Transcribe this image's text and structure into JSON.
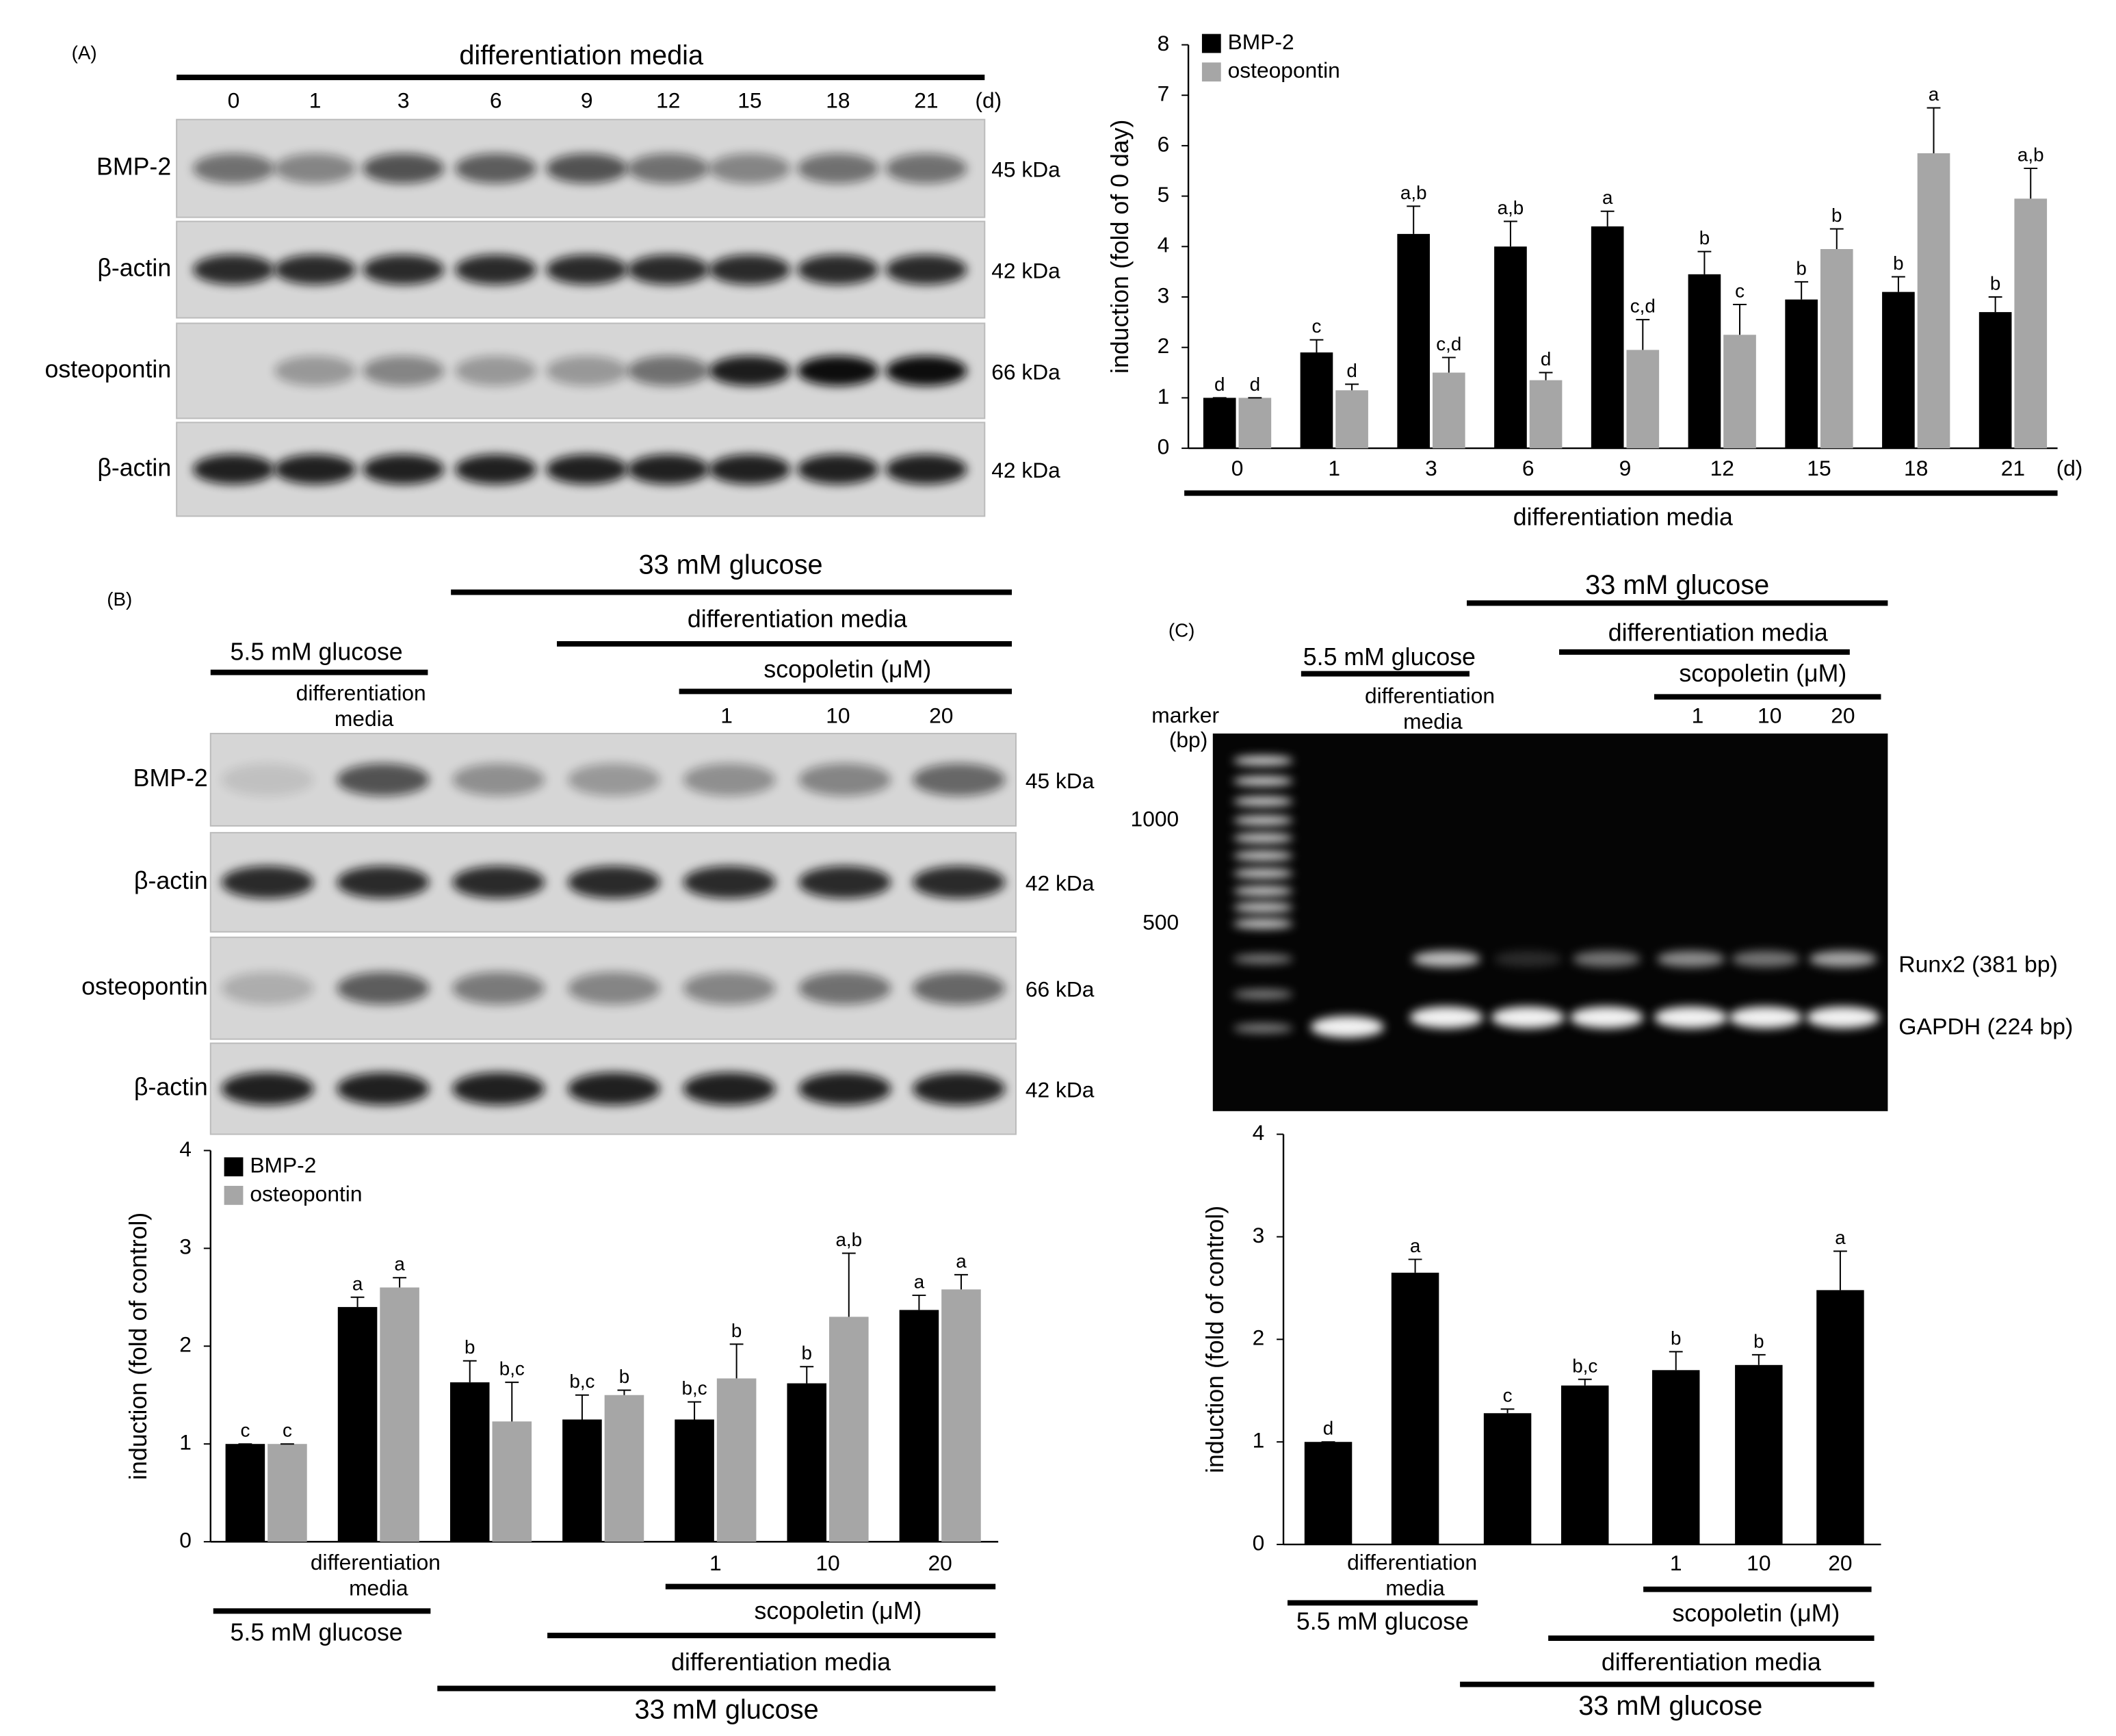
{
  "panels": [
    "(A)",
    "(B)",
    "(C)"
  ],
  "blot_A": {
    "header": "differentiation media",
    "lanes": [
      "0",
      "1",
      "3",
      "6",
      "9",
      "12",
      "15",
      "18",
      "21"
    ],
    "lane_unit": "(d)",
    "rows": [
      {
        "label": "BMP-2",
        "size": "45 kDa"
      },
      {
        "label": "β-actin",
        "size": "42 kDa"
      },
      {
        "label": "osteopontin",
        "size": "66 kDa"
      },
      {
        "label": "β-actin",
        "size": "42 kDa"
      }
    ]
  },
  "blot_B": {
    "groups": {
      "high_glucose": "33 mM glucose",
      "media": "differentiation media",
      "low_glucose": "5.5 mM glucose",
      "scopoletin": "scopoletin (μM)"
    },
    "lanes": [
      null,
      "differentiation media",
      null,
      null,
      "1",
      "10",
      "20"
    ],
    "rows": [
      {
        "label": "BMP-2",
        "size": "45 kDa"
      },
      {
        "label": "β-actin",
        "size": "42 kDa"
      },
      {
        "label": "osteopontin",
        "size": "66 kDa"
      },
      {
        "label": "β-actin",
        "size": "42 kDa"
      }
    ]
  },
  "gel_C": {
    "groups": {
      "high_glucose": "33 mM glucose",
      "media": "differentiation media",
      "low_glucose": "5.5 mM glucose",
      "scopoletin": "scopoletin (μM)"
    },
    "lanes": [
      null,
      "differentiation media",
      null,
      null,
      "1",
      "10",
      "20"
    ],
    "marker": "marker (bp)",
    "marker_sizes": [
      1000,
      500
    ],
    "bands": [
      "Runx2 (381 bp)",
      "GAPDH (224 bp)"
    ]
  },
  "chart_data": [
    {
      "type": "bar",
      "ylabel": "induction (fold of 0 day)",
      "categories": [
        "0",
        "1",
        "3",
        "6",
        "9",
        "12",
        "15",
        "18",
        "21"
      ],
      "x_unit": "(d)",
      "xgroup": "differentiation media",
      "ylim": [
        0,
        8
      ],
      "yticks": [
        0,
        1,
        2,
        3,
        4,
        5,
        6,
        7,
        8
      ],
      "legend": "upper left",
      "series": [
        {
          "name": "BMP-2",
          "color": "#000000",
          "values": [
            1,
            1.9,
            4.25,
            4.0,
            4.4,
            3.45,
            2.95,
            3.1,
            2.7
          ],
          "errors": [
            0,
            0.25,
            0.55,
            0.5,
            0.3,
            0.45,
            0.35,
            0.3,
            0.3
          ],
          "letters": [
            "d",
            "c",
            "a,b",
            "a,b",
            "a",
            "b",
            "b",
            "b",
            "b"
          ]
        },
        {
          "name": "osteopontin",
          "color": "#a6a6a6",
          "values": [
            1,
            1.15,
            1.5,
            1.35,
            1.95,
            2.25,
            3.95,
            5.85,
            4.95
          ],
          "errors": [
            0,
            0.12,
            0.3,
            0.15,
            0.6,
            0.6,
            0.4,
            0.9,
            0.6
          ],
          "letters": [
            "d",
            "d",
            "c,d",
            "d",
            "c,d",
            "c",
            "b",
            "a",
            "a,b"
          ]
        }
      ]
    },
    {
      "type": "bar",
      "ylabel": "induction (fold of control)",
      "categories": [
        null,
        "differentiation media",
        null,
        null,
        "1",
        "10",
        "20"
      ],
      "groups": {
        "low_glucose": "5.5 mM glucose",
        "scopoletin": "scopoletin (μM)",
        "media": "differentiation media",
        "high_glucose": "33 mM glucose"
      },
      "ylim": [
        0,
        4
      ],
      "yticks": [
        0,
        1,
        2,
        3,
        4
      ],
      "legend": "upper left",
      "series": [
        {
          "name": "BMP-2",
          "color": "#000000",
          "values": [
            1,
            2.4,
            1.63,
            1.25,
            1.25,
            1.62,
            2.37
          ],
          "errors": [
            0,
            0.1,
            0.22,
            0.25,
            0.18,
            0.17,
            0.15
          ],
          "letters": [
            "c",
            "a",
            "b",
            "b,c",
            "b,c",
            "b",
            "a"
          ]
        },
        {
          "name": "osteopontin",
          "color": "#a6a6a6",
          "values": [
            1,
            2.6,
            1.23,
            1.5,
            1.67,
            2.3,
            2.58
          ],
          "errors": [
            0,
            0.1,
            0.4,
            0.05,
            0.35,
            0.65,
            0.15
          ],
          "letters": [
            "c",
            "a",
            "b,c",
            "b",
            "b",
            "a,b",
            "a"
          ]
        }
      ]
    },
    {
      "type": "bar",
      "ylabel": "induction (fold of control)",
      "categories": [
        null,
        "differentiation media",
        null,
        null,
        "1",
        "10",
        "20"
      ],
      "groups": {
        "low_glucose": "5.5 mM glucose",
        "scopoletin": "scopoletin (μM)",
        "media": "differentiation media",
        "high_glucose": "33 mM glucose"
      },
      "ylim": [
        0,
        4
      ],
      "yticks": [
        0,
        1,
        2,
        3,
        4
      ],
      "color": "#000000",
      "values": [
        1,
        2.65,
        1.28,
        1.55,
        1.7,
        1.75,
        2.48
      ],
      "errors": [
        0,
        0.13,
        0.04,
        0.06,
        0.18,
        0.1,
        0.38
      ],
      "letters": [
        "d",
        "a",
        "c",
        "b,c",
        "b",
        "b",
        "a"
      ]
    }
  ]
}
